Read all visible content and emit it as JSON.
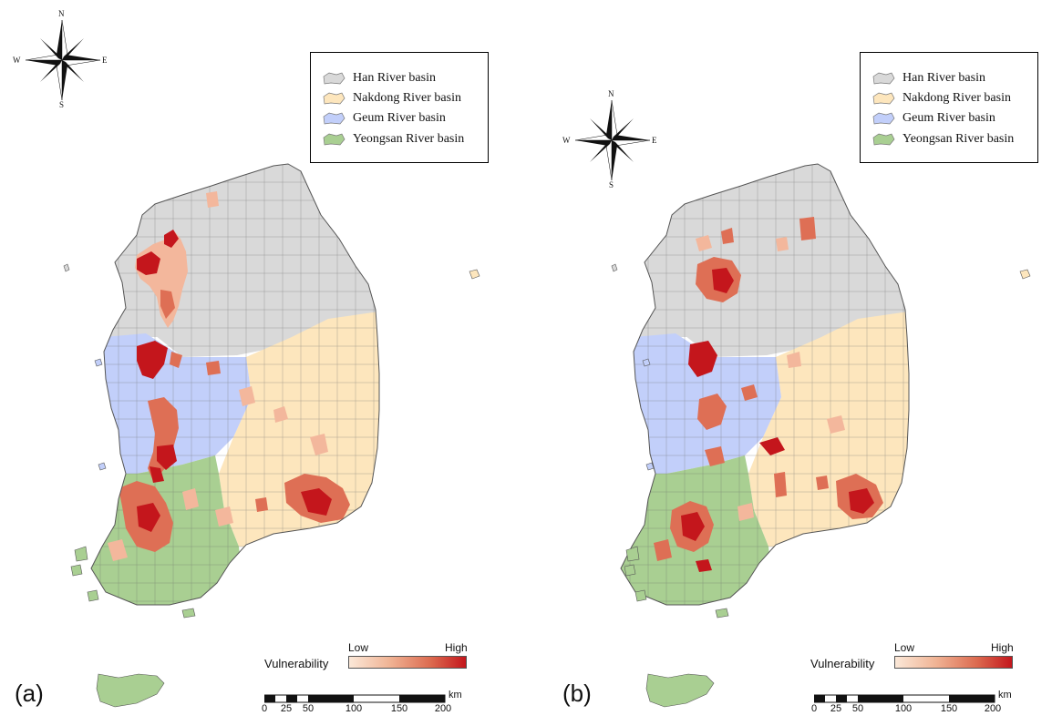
{
  "colors": {
    "han": "#d9d9d9",
    "nakdong": "#fde6bd",
    "geum": "#c2cffa",
    "yeongsan": "#a9cf92",
    "vuln_low": "#f3b79c",
    "vuln_mid": "#de6f55",
    "vuln_high": "#c4161c"
  },
  "legend": {
    "items": [
      {
        "label": "Han River basin",
        "color": "#d9d9d9"
      },
      {
        "label": "Nakdong River basin",
        "color": "#fde6bd"
      },
      {
        "label": "Geum River basin",
        "color": "#c2cffa"
      },
      {
        "label": "Yeongsan River basin",
        "color": "#a9cf92"
      }
    ]
  },
  "compass": {
    "n": "N",
    "s": "S",
    "e": "E",
    "w": "W",
    "icon": "compass-rose-icon"
  },
  "vulnerability": {
    "title": "Vulnerability",
    "low": "Low",
    "high": "High"
  },
  "scale": {
    "ticks": [
      "0",
      "25",
      "50",
      "100",
      "150",
      "200"
    ],
    "unit": "km"
  },
  "panels": [
    {
      "label": "(a)"
    },
    {
      "label": "(b)"
    }
  ]
}
